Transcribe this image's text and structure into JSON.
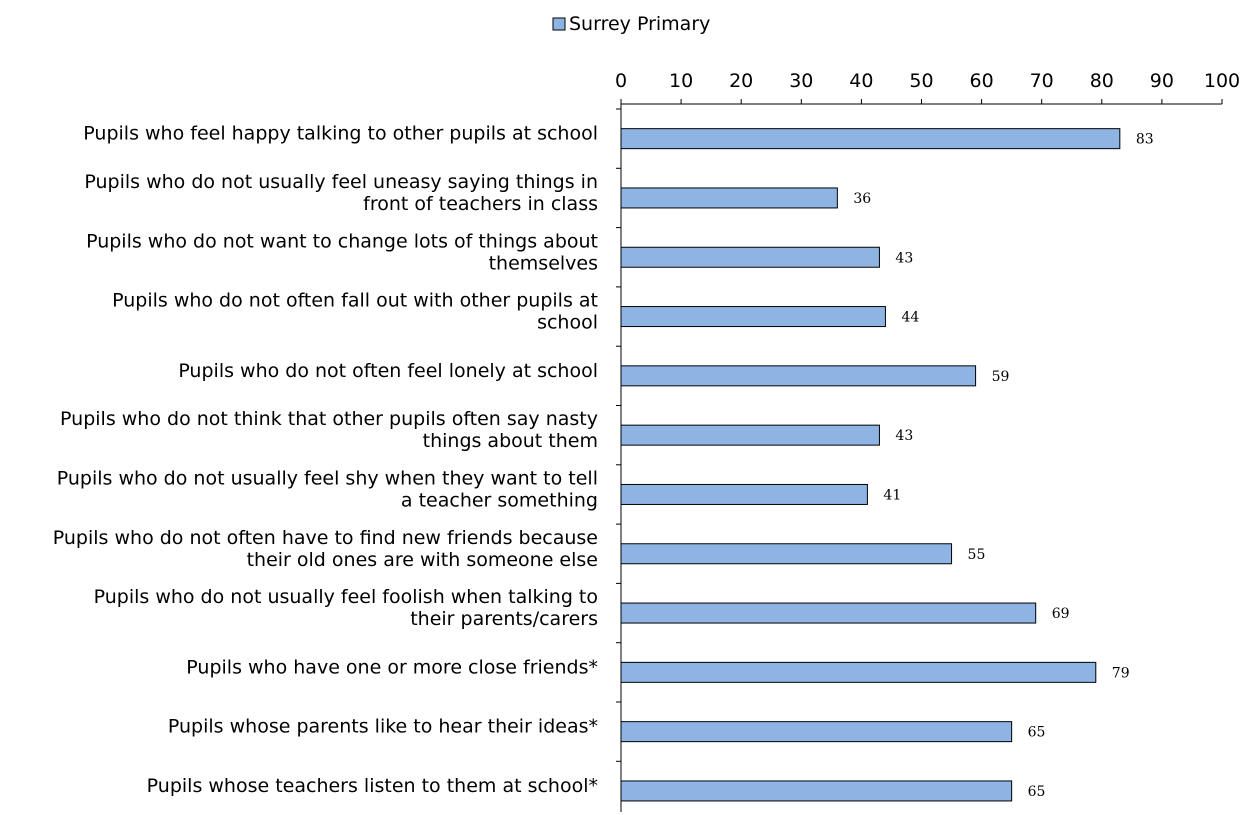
{
  "chart_data": {
    "type": "bar",
    "orientation": "horizontal",
    "categories": [
      [
        "Pupils who feel happy talking to other pupils at school"
      ],
      [
        "Pupils who do not usually feel uneasy saying things in",
        "front of teachers in class"
      ],
      [
        "Pupils who do not want to change lots of things about",
        "themselves"
      ],
      [
        "Pupils who do not often fall out with other pupils at",
        "school"
      ],
      [
        "Pupils who do not often feel lonely at school"
      ],
      [
        "Pupils who do not think that other pupils often say nasty",
        "things about them"
      ],
      [
        "Pupils who do not usually feel shy when they want to tell",
        "a teacher something"
      ],
      [
        "Pupils who do not often have to find new friends because",
        "their old ones are with someone else"
      ],
      [
        "Pupils who do not usually feel foolish when talking to",
        "their parents/carers"
      ],
      [
        "Pupils who have one or more close friends*"
      ],
      [
        "Pupils whose parents like to hear their ideas*"
      ],
      [
        "Pupils whose teachers listen to them at school*"
      ]
    ],
    "series": [
      {
        "name": "Surrey Primary",
        "values": [
          83,
          36,
          43,
          44,
          59,
          43,
          41,
          55,
          69,
          79,
          65,
          65
        ]
      }
    ],
    "xlim": [
      0,
      100
    ],
    "xticks": [
      0,
      10,
      20,
      30,
      40,
      50,
      60,
      70,
      80,
      90,
      100
    ],
    "axis_position": "top",
    "data_labels": true,
    "legend": "top",
    "grid": false,
    "colors": {
      "bar_fill": "#8EB4E3",
      "bar_stroke": "#000000",
      "axis": "#000000"
    }
  }
}
